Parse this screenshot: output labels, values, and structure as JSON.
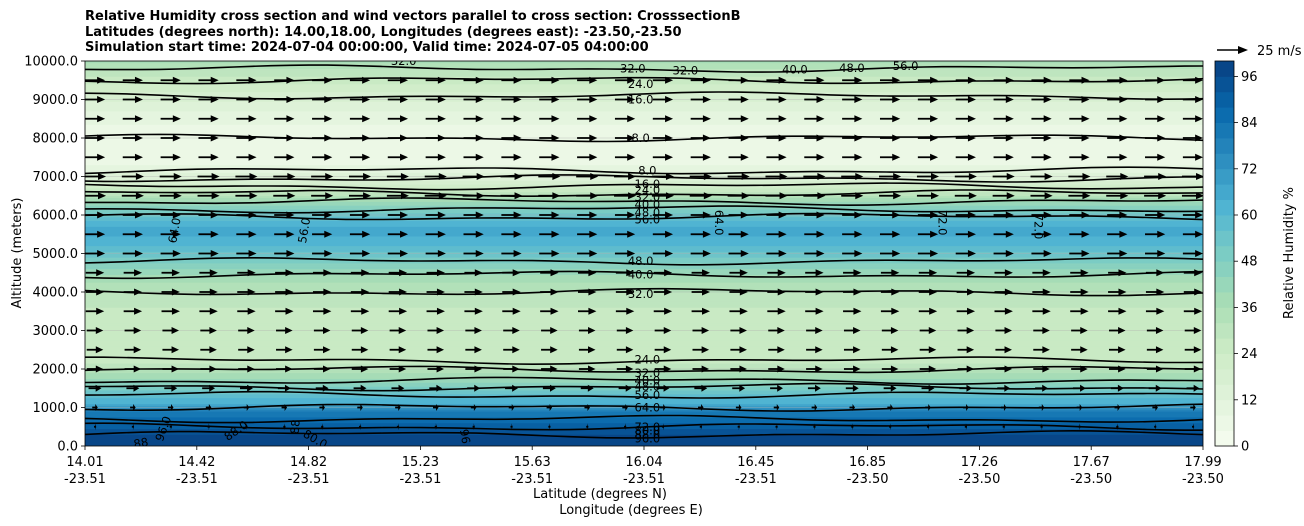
{
  "figure": {
    "title_lines": [
      "Relative Humidity cross section and wind vectors parallel to cross section: CrosssectionB",
      "Latitudes (degrees north): 14.00,18.00, Longitudes (degrees east): -23.50,-23.50",
      "Simulation start time: 2024-07-04 00:00:00, Valid time: 2024-07-05 04:00:00"
    ],
    "quiver_key_label": "25 m/s"
  },
  "chart_data": {
    "type": "heatmap",
    "subtype": "filled contour cross-section with contour lines and wind vectors",
    "title": "Relative Humidity cross section and wind vectors parallel to cross section: CrosssectionB",
    "ylabel": "Altitude (meters)",
    "xlabel_lat": "Latitude (degrees N)",
    "xlabel_lon": "Longitude (degrees E)",
    "ylim": [
      0,
      10000
    ],
    "y_ticks": [
      "0.0",
      "1000.0",
      "2000.0",
      "3000.0",
      "4000.0",
      "5000.0",
      "6000.0",
      "7000.0",
      "8000.0",
      "9000.0",
      "10000.0"
    ],
    "x_ticks": [
      {
        "lat": "14.01",
        "lon": "-23.51"
      },
      {
        "lat": "14.42",
        "lon": "-23.51"
      },
      {
        "lat": "14.82",
        "lon": "-23.51"
      },
      {
        "lat": "15.23",
        "lon": "-23.51"
      },
      {
        "lat": "15.63",
        "lon": "-23.51"
      },
      {
        "lat": "16.04",
        "lon": "-23.51"
      },
      {
        "lat": "16.45",
        "lon": "-23.51"
      },
      {
        "lat": "16.85",
        "lon": "-23.50"
      },
      {
        "lat": "17.26",
        "lon": "-23.50"
      },
      {
        "lat": "17.67",
        "lon": "-23.50"
      },
      {
        "lat": "17.99",
        "lon": "-23.50"
      }
    ],
    "colorbar": {
      "label": "Relative Humidity %",
      "ticks": [
        "0",
        "12",
        "24",
        "36",
        "48",
        "60",
        "72",
        "84",
        "96"
      ],
      "range": [
        0,
        100
      ],
      "colormap": "GnBu",
      "levels_step": 4
    },
    "rh_profile_by_altitude": [
      {
        "z": 0,
        "rh": 99
      },
      {
        "z": 300,
        "rh": 96
      },
      {
        "z": 600,
        "rh": 88
      },
      {
        "z": 900,
        "rh": 80
      },
      {
        "z": 1100,
        "rh": 64
      },
      {
        "z": 1350,
        "rh": 56
      },
      {
        "z": 1550,
        "rh": 48
      },
      {
        "z": 1750,
        "rh": 40
      },
      {
        "z": 2000,
        "rh": 32
      },
      {
        "z": 2250,
        "rh": 26
      },
      {
        "z": 3000,
        "rh": 26
      },
      {
        "z": 3600,
        "rh": 28
      },
      {
        "z": 4100,
        "rh": 33
      },
      {
        "z": 4450,
        "rh": 40
      },
      {
        "z": 4750,
        "rh": 48
      },
      {
        "z": 5300,
        "rh": 62
      },
      {
        "z": 5650,
        "rh": 66
      },
      {
        "z": 5950,
        "rh": 56
      },
      {
        "z": 6150,
        "rh": 48
      },
      {
        "z": 6350,
        "rh": 40
      },
      {
        "z": 6600,
        "rh": 28
      },
      {
        "z": 6900,
        "rh": 16
      },
      {
        "z": 7300,
        "rh": 8
      },
      {
        "z": 8000,
        "rh": 5
      },
      {
        "z": 8600,
        "rh": 10
      },
      {
        "z": 9100,
        "rh": 18
      },
      {
        "z": 9500,
        "rh": 26
      },
      {
        "z": 9800,
        "rh": 32
      },
      {
        "z": 10000,
        "rh": 38
      }
    ],
    "contour_levels": [
      {
        "level": "88.0",
        "z": 300
      },
      {
        "level": "80.0",
        "z": 500
      },
      {
        "level": "72.0",
        "z": 700
      },
      {
        "level": "64.0",
        "z": 1000
      },
      {
        "level": "56.0",
        "z": 1320
      },
      {
        "level": "48.0",
        "z": 1530
      },
      {
        "level": "40.0",
        "z": 1700
      },
      {
        "level": "32.0",
        "z": 1980
      },
      {
        "level": "24.0",
        "z": 2220
      },
      {
        "level": "32.0",
        "z": 4000
      },
      {
        "level": "40.0",
        "z": 4450
      },
      {
        "level": "48.0",
        "z": 4800
      },
      {
        "level": "56.0",
        "z": 5950
      },
      {
        "level": "48.0",
        "z": 6150
      },
      {
        "level": "40.0",
        "z": 6350
      },
      {
        "level": "32.0",
        "z": 6560
      },
      {
        "level": "24.0",
        "z": 6750
      },
      {
        "level": "16.0",
        "z": 6950
      },
      {
        "level": "8.0",
        "z": 7150
      },
      {
        "level": "8.0",
        "z": 8000
      },
      {
        "level": "16.0",
        "z": 9100
      },
      {
        "level": "24.0",
        "z": 9500
      },
      {
        "level": "32.0",
        "z": 9800
      }
    ],
    "inline_labels": [
      {
        "text": "32.0",
        "x_frac": 0.49,
        "z": 9800
      },
      {
        "text": "32.0",
        "x_frac": 0.537,
        "z": 9750
      },
      {
        "text": "40.0",
        "x_frac": 0.635,
        "z": 9780
      },
      {
        "text": "48.0",
        "x_frac": 0.686,
        "z": 9820
      },
      {
        "text": "56.0",
        "x_frac": 0.734,
        "z": 9870
      },
      {
        "text": "32.0",
        "x_frac": 0.285,
        "z": 10000
      },
      {
        "text": "24.0",
        "x_frac": 0.497,
        "z": 9400
      },
      {
        "text": "16.0",
        "x_frac": 0.497,
        "z": 9000
      },
      {
        "text": "8.0",
        "x_frac": 0.497,
        "z": 8000
      },
      {
        "text": "8.0",
        "x_frac": 0.503,
        "z": 7150
      },
      {
        "text": "16.0",
        "x_frac": 0.503,
        "z": 6800
      },
      {
        "text": "24.0",
        "x_frac": 0.503,
        "z": 6650
      },
      {
        "text": "32.0",
        "x_frac": 0.503,
        "z": 6470
      },
      {
        "text": "40.0",
        "x_frac": 0.503,
        "z": 6270
      },
      {
        "text": "48.0",
        "x_frac": 0.503,
        "z": 6070
      },
      {
        "text": "56.0",
        "x_frac": 0.503,
        "z": 5880
      },
      {
        "text": "64.0",
        "x_frac": 0.08,
        "z": 5600,
        "rotate": -80
      },
      {
        "text": "56.0",
        "x_frac": 0.196,
        "z": 5600,
        "rotate": -80
      },
      {
        "text": "64.0",
        "x_frac": 0.567,
        "z": 5800,
        "rotate": 90
      },
      {
        "text": "72.0",
        "x_frac": 0.767,
        "z": 5800,
        "rotate": 90
      },
      {
        "text": "72.0",
        "x_frac": 0.853,
        "z": 5700,
        "rotate": 90
      },
      {
        "text": "48.0",
        "x_frac": 0.497,
        "z": 4800
      },
      {
        "text": "40.0",
        "x_frac": 0.497,
        "z": 4450
      },
      {
        "text": "32.0",
        "x_frac": 0.497,
        "z": 3950
      },
      {
        "text": "24.0",
        "x_frac": 0.503,
        "z": 2250
      },
      {
        "text": "32.0",
        "x_frac": 0.503,
        "z": 1900
      },
      {
        "text": "40.0",
        "x_frac": 0.503,
        "z": 1700
      },
      {
        "text": "48.0",
        "x_frac": 0.503,
        "z": 1550
      },
      {
        "text": "56.0",
        "x_frac": 0.503,
        "z": 1320
      },
      {
        "text": "64.0",
        "x_frac": 0.503,
        "z": 1000
      },
      {
        "text": "72.0",
        "x_frac": 0.503,
        "z": 500
      },
      {
        "text": "80.0",
        "x_frac": 0.503,
        "z": 400
      },
      {
        "text": "88.0",
        "x_frac": 0.503,
        "z": 300
      },
      {
        "text": "96.0",
        "x_frac": 0.503,
        "z": 200
      },
      {
        "text": "88",
        "x_frac": 0.05,
        "z": 80,
        "rotate": -10
      },
      {
        "text": "96.0",
        "x_frac": 0.07,
        "z": 450,
        "rotate": -70
      },
      {
        "text": "88.0",
        "x_frac": 0.135,
        "z": 400,
        "rotate": -35
      },
      {
        "text": "88",
        "x_frac": 0.188,
        "z": 500,
        "rotate": -85
      },
      {
        "text": "80.0",
        "x_frac": 0.206,
        "z": 180,
        "rotate": 30
      },
      {
        "text": "96",
        "x_frac": 0.34,
        "z": 250,
        "rotate": 80
      }
    ],
    "wind": {
      "direction": "parallel to cross section, toward increasing latitude",
      "reference_speed": 25,
      "reference_unit": "m/s",
      "row_altitudes": [
        500,
        1000,
        1500,
        2000,
        2500,
        3000,
        3500,
        4000,
        4500,
        5000,
        5500,
        6000,
        6500,
        7000,
        7500,
        8000,
        8500,
        9000,
        9500
      ],
      "row_speeds": [
        2,
        6,
        14,
        18,
        18,
        18,
        20,
        20,
        20,
        22,
        22,
        22,
        24,
        24,
        22,
        22,
        22,
        22,
        22
      ]
    },
    "colors": {
      "contour_line": "#000000",
      "arrow": "#000000",
      "gridline": "#b0b0b0"
    }
  }
}
